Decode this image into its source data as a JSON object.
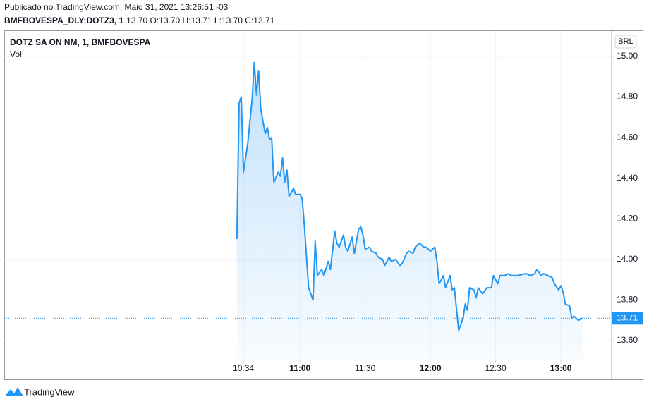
{
  "header": {
    "published": "Publicado no TradingView.com, Maio 31, 2021 13:26:51 -03",
    "symbol": "BMFBOVESPA_DLY:DOTZ3, 1",
    "ohlc": "13.70 O:13.70 H:13.71 L:13.70 C:13.71"
  },
  "footer": "TradingView",
  "chart_data": {
    "type": "line",
    "title": "DOTZ SA ON NM, 1, BMFBOVESPA",
    "subtitle": "Vol",
    "currency": "BRL",
    "color": "#2196f3",
    "grid": true,
    "x": [
      "10:31",
      "10:32",
      "10:33",
      "10:34",
      "10:36",
      "10:38",
      "10:39",
      "10:40",
      "10:41",
      "10:42",
      "10:44",
      "10:45",
      "10:46",
      "10:47",
      "10:48",
      "10:50",
      "10:51",
      "10:52",
      "10:53",
      "10:54",
      "10:55",
      "10:57",
      "10:58",
      "11:00",
      "11:01",
      "11:02",
      "11:04",
      "11:06",
      "11:07",
      "11:08",
      "11:10",
      "11:11",
      "11:13",
      "11:14",
      "11:16",
      "11:17",
      "11:18",
      "11:20",
      "11:21",
      "11:22",
      "11:24",
      "11:25",
      "11:27",
      "11:28",
      "11:29",
      "11:30",
      "11:32",
      "11:33",
      "11:35",
      "11:36",
      "11:38",
      "11:39",
      "11:41",
      "11:42",
      "11:44",
      "11:46",
      "11:47",
      "11:49",
      "11:50",
      "11:52",
      "11:53",
      "11:55",
      "11:57",
      "11:58",
      "12:00",
      "12:02",
      "12:03",
      "12:04",
      "12:06",
      "12:07",
      "12:09",
      "12:10",
      "12:11",
      "12:13",
      "12:15",
      "12:16",
      "12:17",
      "12:18",
      "12:20",
      "12:21",
      "12:22",
      "12:24",
      "12:26",
      "12:28",
      "12:29",
      "12:31",
      "12:32",
      "12:34",
      "12:36",
      "12:37",
      "12:40",
      "12:44",
      "12:46",
      "12:48",
      "12:49",
      "12:51",
      "12:52",
      "12:54",
      "12:56",
      "12:57",
      "12:59",
      "13:00",
      "13:01",
      "13:02",
      "13:04",
      "13:05",
      "13:06",
      "13:08",
      "13:10"
    ],
    "values": [
      14.1,
      14.77,
      14.8,
      14.43,
      14.57,
      14.79,
      14.97,
      14.81,
      14.93,
      14.74,
      14.62,
      14.65,
      14.59,
      14.6,
      14.38,
      14.43,
      14.41,
      14.5,
      14.38,
      14.44,
      14.31,
      14.35,
      14.32,
      14.32,
      14.3,
      14.17,
      13.86,
      13.8,
      14.09,
      13.92,
      13.95,
      13.92,
      13.99,
      13.95,
      14.14,
      14.08,
      14.06,
      14.12,
      14.06,
      14.04,
      14.11,
      14.03,
      14.15,
      14.16,
      14.12,
      14.05,
      14.06,
      14.04,
      14.03,
      14.01,
      14.0,
      13.97,
      14.01,
      13.99,
      14.0,
      13.97,
      13.98,
      14.03,
      14.04,
      14.03,
      14.06,
      14.08,
      14.06,
      14.06,
      14.04,
      14.06,
      13.99,
      13.88,
      13.92,
      13.86,
      13.92,
      13.85,
      13.86,
      13.65,
      13.71,
      13.78,
      13.75,
      13.86,
      13.85,
      13.81,
      13.86,
      13.83,
      13.86,
      13.86,
      13.92,
      13.88,
      13.92,
      13.92,
      13.93,
      13.92,
      13.92,
      13.93,
      13.92,
      13.93,
      13.95,
      13.92,
      13.93,
      13.92,
      13.91,
      13.88,
      13.85,
      13.87,
      13.84,
      13.78,
      13.77,
      13.71,
      13.72,
      13.7,
      13.71
    ],
    "xlim": [
      "08:44",
      "13:23"
    ],
    "xticks": [
      "10:34",
      "11:00",
      "11:30",
      "12:00",
      "12:30",
      "13:00"
    ],
    "ylim": [
      13.506,
      15.125
    ],
    "yticks": [
      {
        "value": 13.6,
        "label": "13.60"
      },
      {
        "value": 13.8,
        "label": "13.80"
      },
      {
        "value": 14.0,
        "label": "14.00"
      },
      {
        "value": 14.2,
        "label": "14.20"
      },
      {
        "value": 14.4,
        "label": "14.40"
      },
      {
        "value": 14.6,
        "label": "14.60"
      },
      {
        "value": 14.8,
        "label": "14.80"
      },
      {
        "value": 15.0,
        "label": "15.00"
      }
    ],
    "last_price": {
      "value": 13.71,
      "label": "13.71"
    }
  }
}
